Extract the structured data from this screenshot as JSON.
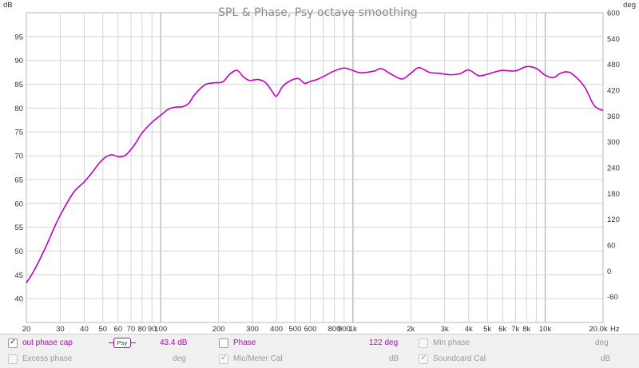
{
  "chart_data": {
    "type": "line",
    "title": "SPL & Phase, Psy octave smoothing",
    "xscale": "log",
    "xlim": [
      20,
      20000
    ],
    "ylim": [
      35,
      100
    ],
    "y2lim": [
      -120,
      600
    ],
    "y_unit": "dB",
    "y2_unit": "deg",
    "x_unit": "Hz",
    "x_ticks": [
      {
        "v": 20,
        "label": "20"
      },
      {
        "v": 30,
        "label": "30"
      },
      {
        "v": 40,
        "label": "40"
      },
      {
        "v": 50,
        "label": "50"
      },
      {
        "v": 60,
        "label": "60"
      },
      {
        "v": 70,
        "label": "70"
      },
      {
        "v": 80,
        "label": "80"
      },
      {
        "v": 90,
        "label": "90"
      },
      {
        "v": 100,
        "label": "100"
      },
      {
        "v": 200,
        "label": "200"
      },
      {
        "v": 300,
        "label": "300"
      },
      {
        "v": 400,
        "label": "400"
      },
      {
        "v": 500,
        "label": "500"
      },
      {
        "v": 600,
        "label": "600"
      },
      {
        "v": 800,
        "label": "800"
      },
      {
        "v": 900,
        "label": "900"
      },
      {
        "v": 1000,
        "label": "1k"
      },
      {
        "v": 2000,
        "label": "2k"
      },
      {
        "v": 3000,
        "label": "3k"
      },
      {
        "v": 4000,
        "label": "4k"
      },
      {
        "v": 5000,
        "label": "5k"
      },
      {
        "v": 6000,
        "label": "6k"
      },
      {
        "v": 7000,
        "label": "7k"
      },
      {
        "v": 8000,
        "label": "8k"
      },
      {
        "v": 10000,
        "label": "10k"
      },
      {
        "v": 20000,
        "label": "20.0k"
      }
    ],
    "y_ticks": [
      40,
      45,
      50,
      55,
      60,
      65,
      70,
      75,
      80,
      85,
      90,
      95
    ],
    "y2_ticks": [
      -60,
      0,
      60,
      120,
      180,
      240,
      300,
      360,
      420,
      480,
      540,
      600
    ],
    "grid": true,
    "series": [
      {
        "name": "out phase cap",
        "color": "#c000c0",
        "x": [
          20,
          22,
          25,
          28,
          30,
          33,
          36,
          40,
          44,
          48,
          52,
          56,
          60,
          65,
          70,
          75,
          80,
          90,
          100,
          110,
          120,
          130,
          140,
          150,
          170,
          190,
          210,
          230,
          250,
          270,
          290,
          320,
          350,
          380,
          400,
          430,
          470,
          520,
          560,
          600,
          650,
          700,
          800,
          900,
          1000,
          1100,
          1300,
          1400,
          1600,
          1800,
          2000,
          2200,
          2500,
          2800,
          3200,
          3600,
          4000,
          4500,
          5000,
          5500,
          6000,
          7000,
          8000,
          9000,
          10000,
          11000,
          12000,
          13000,
          14000,
          16000,
          18000,
          20000
        ],
        "values": [
          43.3,
          46.0,
          50.5,
          55.0,
          57.5,
          60.5,
          62.8,
          64.5,
          66.5,
          68.5,
          69.8,
          70.2,
          69.8,
          70.0,
          71.3,
          73.0,
          74.8,
          77.0,
          78.5,
          79.8,
          80.2,
          80.3,
          81.0,
          82.8,
          84.9,
          85.3,
          85.5,
          87.2,
          87.9,
          86.5,
          85.8,
          86.0,
          85.4,
          83.5,
          82.5,
          84.5,
          85.7,
          86.2,
          85.2,
          85.6,
          86.0,
          86.6,
          87.8,
          88.4,
          87.9,
          87.4,
          87.8,
          88.3,
          87.0,
          86.1,
          87.3,
          88.5,
          87.5,
          87.3,
          87.0,
          87.2,
          88.0,
          86.8,
          87.1,
          87.6,
          87.9,
          87.8,
          88.7,
          88.3,
          86.9,
          86.4,
          87.3,
          87.6,
          87.0,
          84.5,
          80.5,
          79.5
        ]
      }
    ]
  },
  "axis": {
    "y_unit_label": "dB",
    "y2_unit_label": "deg",
    "x_unit_label": "Hz"
  },
  "colors": {
    "trace": "#c000c0",
    "grid_major": "#a0a0a0",
    "grid_minor": "#d4d4d4"
  },
  "legend": {
    "row1": {
      "trace_name": "out phase cap",
      "trace_checked": true,
      "smoothing_badge": "Psy",
      "trace_value": "43.4 dB",
      "phase_label": "Phase",
      "phase_checked": false,
      "phase_value": "122 deg",
      "min_phase_label": "Min phase",
      "min_phase_unit": "deg"
    },
    "row2": {
      "excess_phase_label": "Excess phase",
      "excess_phase_unit": "deg",
      "mic_cal_label": "Mic/Meter Cal",
      "mic_cal_checked": true,
      "mic_cal_unit": "dB",
      "soundcard_cal_label": "Soundcard Cal",
      "soundcard_cal_checked": true,
      "soundcard_cal_unit": "dB"
    }
  }
}
